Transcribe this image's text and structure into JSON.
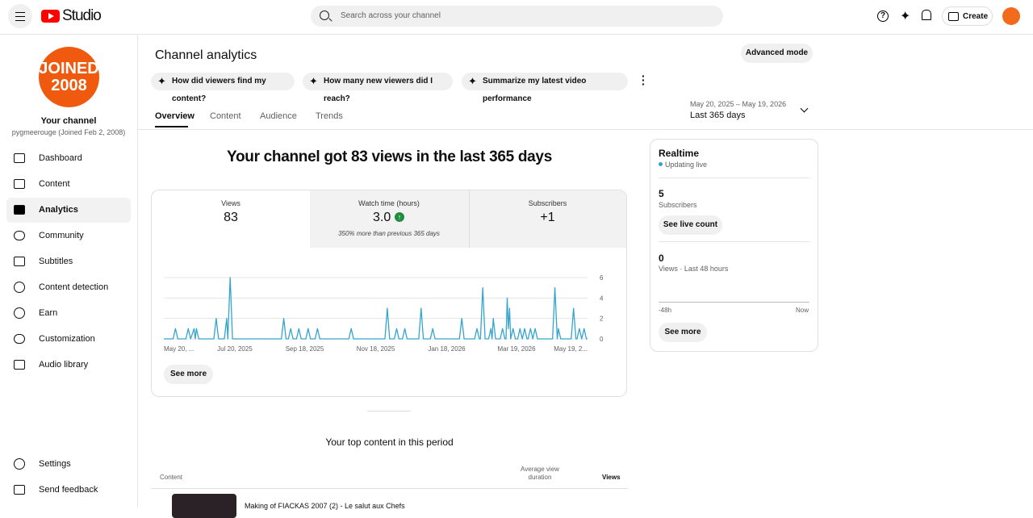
{
  "header": {
    "logo": "Studio",
    "search_placeholder": "Search across your channel",
    "create": "Create"
  },
  "sidebar": {
    "avatar_lines": [
      "JOINED",
      "2008"
    ],
    "channel_title": "Your channel",
    "channel_sub": "pygmeerouge (Joined Feb 2, 2008)",
    "nav": [
      "Dashboard",
      "Content",
      "Analytics",
      "Community",
      "Subtitles",
      "Content detection",
      "Earn",
      "Customization",
      "Audio library"
    ],
    "footer_nav": [
      "Settings",
      "Send feedback"
    ]
  },
  "page": {
    "title": "Channel analytics",
    "advanced": "Advanced mode",
    "prompts": [
      "How did viewers find my content?",
      "How many new viewers did I reach?",
      "Summarize my latest video performance"
    ],
    "tabs": [
      "Overview",
      "Content",
      "Audience",
      "Trends"
    ],
    "date_range": "May 20, 2025 – May 19, 2026",
    "period": "Last 365 days"
  },
  "summary": {
    "headline": "Your channel got 83 views in the last 365 days",
    "metrics": [
      {
        "label": "Views",
        "value": "83"
      },
      {
        "label": "Watch time (hours)",
        "value": "3.0",
        "note": "350% more than previous 365 days"
      },
      {
        "label": "Subscribers",
        "value": "+1"
      }
    ],
    "see_more": "See more"
  },
  "chart_data": {
    "type": "line",
    "color": "#35a4cf",
    "grid": true,
    "x": [
      0,
      8,
      10,
      12,
      19,
      21,
      23,
      26,
      27,
      28,
      30,
      43,
      45,
      47,
      52,
      54,
      55,
      57,
      59,
      101,
      103,
      105,
      107,
      109,
      111,
      114,
      116,
      118,
      122,
      124,
      126,
      130,
      132,
      134,
      159,
      161,
      163,
      190,
      192,
      194,
      198,
      200,
      202,
      205,
      207,
      209,
      219,
      221,
      223,
      229,
      231,
      233,
      254,
      256,
      258,
      267,
      269,
      271,
      272,
      274,
      276,
      279,
      281,
      282,
      283,
      285,
      289,
      291,
      293,
      294,
      295,
      296,
      297,
      298,
      300,
      302,
      304,
      306,
      308,
      310,
      312,
      313,
      315,
      317,
      319,
      321,
      334,
      336,
      338,
      339,
      341,
      350,
      352,
      354,
      355,
      357,
      359,
      361,
      363,
      364
    ],
    "values": [
      0,
      0,
      1,
      0,
      0,
      1,
      0,
      1,
      0,
      1,
      0,
      0,
      2,
      0,
      0,
      2,
      0,
      6,
      0,
      0,
      2,
      0,
      0,
      1,
      0,
      0,
      1,
      0,
      0,
      1,
      0,
      0,
      1,
      0,
      0,
      1,
      0,
      0,
      3,
      0,
      0,
      1,
      0,
      0,
      1,
      0,
      0,
      3,
      0,
      0,
      1,
      0,
      0,
      2,
      0,
      0,
      1,
      0,
      0,
      5,
      0,
      0,
      1,
      0,
      2,
      0,
      0,
      1,
      0,
      0,
      4,
      1,
      3,
      0,
      1,
      0,
      0,
      1,
      0,
      1,
      0,
      0,
      1,
      0,
      1,
      0,
      0,
      5,
      0,
      1,
      0,
      0,
      3,
      0,
      0,
      1,
      0,
      1,
      0,
      0
    ],
    "xlim": [
      0,
      364
    ],
    "xticks": [
      {
        "value": 0,
        "label": "May 20, ..."
      },
      {
        "value": 61,
        "label": "Jul 20, 2025"
      },
      {
        "value": 121,
        "label": "Sep 18, 2025"
      },
      {
        "value": 182,
        "label": "Nov 18, 2025"
      },
      {
        "value": 243,
        "label": "Jan 18, 2026"
      },
      {
        "value": 303,
        "label": "Mar 19, 2026"
      },
      {
        "value": 364,
        "label": "May 19, 2..."
      }
    ],
    "ylim": [
      0,
      6
    ],
    "yticks": [
      0,
      2,
      4,
      6
    ]
  },
  "realtime": {
    "title": "Realtime",
    "status": "Updating live",
    "subs_value": "5",
    "subs_label": "Subscribers",
    "live_button": "See live count",
    "views_value": "0",
    "views_label": "Views · Last 48 hours",
    "axis_start": "-48h",
    "axis_end": "Now",
    "see_more": "See more"
  },
  "top_content": {
    "title": "Your top content in this period",
    "columns": [
      "Content",
      "Average view duration",
      "Views"
    ],
    "rows": [
      [
        "Making of FIACKAS 2007 (2) - Le salut aux Chefs"
      ]
    ]
  }
}
